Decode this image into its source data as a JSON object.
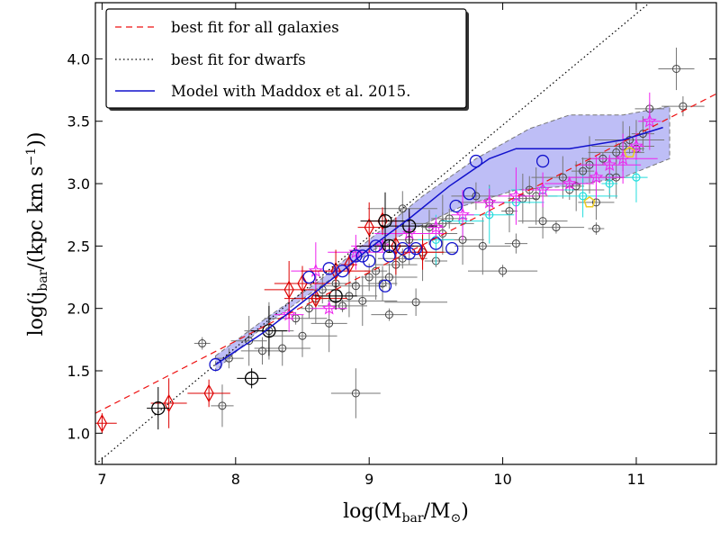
{
  "chart_data": {
    "type": "scatter",
    "xlabel": "log(M",
    "xlabel_sub": "bar",
    "xlabel_mid": "/M",
    "xlabel_sub2": "⊙",
    "xlabel_end": ")",
    "ylabel": "log(j",
    "ylabel_sub": "bar",
    "ylabel_mid": "/(kpc km s",
    "ylabel_sup": "−1",
    "ylabel_end": "))",
    "xlim": [
      6.95,
      11.6
    ],
    "ylim": [
      0.75,
      4.45
    ],
    "xticks": [
      7,
      8,
      9,
      10,
      11
    ],
    "xtick_labels": [
      "7",
      "8",
      "9",
      "10",
      "11"
    ],
    "yticks": [
      1.0,
      1.5,
      2.0,
      2.5,
      3.0,
      3.5,
      4.0
    ],
    "ytick_labels": [
      "1.0",
      "1.5",
      "2.0",
      "2.5",
      "3.0",
      "3.5",
      "4.0"
    ],
    "legend": {
      "location": "upper left",
      "entries": [
        {
          "label": "best fit for all galaxies",
          "style": "dashed",
          "color": "#ee1111"
        },
        {
          "label": "best fit for dwarfs",
          "style": "dotted",
          "color": "#000000"
        },
        {
          "label": "Model with Maddox et al. 2015.",
          "style": "solid",
          "color": "#1111cc"
        }
      ]
    },
    "lines": [
      {
        "name": "best fit for all galaxies",
        "color": "#ee1111",
        "style": "dashed",
        "x": [
          6.95,
          11.6
        ],
        "y": [
          1.16,
          3.72
        ]
      },
      {
        "name": "best fit for dwarfs",
        "color": "#000000",
        "style": "dotted",
        "x": [
          6.95,
          11.1
        ],
        "y": [
          0.75,
          4.45
        ]
      },
      {
        "name": "Model with Maddox et al. 2015.",
        "color": "#1111cc",
        "style": "solid",
        "x": [
          7.85,
          8.2,
          8.5,
          8.8,
          9.0,
          9.3,
          9.6,
          9.9,
          10.1,
          10.5,
          10.9,
          11.2
        ],
        "y": [
          1.55,
          1.8,
          2.05,
          2.3,
          2.48,
          2.72,
          2.98,
          3.2,
          3.28,
          3.28,
          3.35,
          3.45
        ]
      }
    ],
    "band": {
      "color": "#8888ee",
      "upper_x": [
        7.85,
        8.2,
        8.6,
        9.0,
        9.4,
        9.8,
        10.2,
        10.5,
        10.9,
        11.25
      ],
      "upper_y": [
        1.62,
        1.9,
        2.2,
        2.55,
        2.9,
        3.2,
        3.44,
        3.55,
        3.55,
        3.62
      ],
      "lower_x": [
        11.25,
        10.9,
        10.5,
        10.1,
        9.7,
        9.3,
        9.0,
        8.6,
        8.2,
        7.85
      ],
      "lower_y": [
        3.2,
        3.05,
        2.98,
        2.95,
        2.82,
        2.62,
        2.45,
        2.15,
        1.85,
        1.5
      ]
    },
    "grey_points": {
      "x": [
        7.75,
        7.9,
        7.95,
        8.1,
        8.2,
        8.25,
        8.35,
        8.45,
        8.5,
        8.55,
        8.6,
        8.65,
        8.7,
        8.75,
        8.8,
        8.85,
        8.9,
        8.95,
        9.0,
        9.05,
        9.1,
        9.15,
        9.2,
        9.25,
        9.3,
        9.35,
        9.4,
        9.45,
        9.5,
        9.55,
        9.6,
        9.7,
        9.8,
        9.85,
        9.9,
        10.0,
        10.05,
        10.1,
        10.15,
        10.2,
        10.25,
        10.3,
        10.4,
        10.45,
        10.5,
        10.55,
        10.6,
        10.65,
        10.7,
        10.75,
        10.8,
        10.85,
        10.9,
        10.95,
        11.0,
        11.05,
        11.1,
        11.3,
        11.35,
        8.9,
        9.15,
        9.55,
        9.25,
        10.7,
        10.85
      ],
      "y": [
        1.72,
        1.22,
        1.6,
        1.74,
        1.66,
        1.82,
        1.68,
        1.92,
        1.78,
        2.0,
        2.08,
        2.15,
        1.88,
        2.2,
        2.02,
        2.1,
        2.18,
        2.06,
        2.25,
        2.3,
        2.2,
        1.95,
        2.35,
        2.4,
        2.55,
        2.05,
        2.45,
        2.65,
        2.38,
        2.6,
        2.72,
        2.55,
        2.9,
        2.5,
        2.85,
        2.3,
        2.78,
        2.52,
        2.88,
        2.95,
        2.9,
        2.7,
        2.65,
        3.05,
        2.95,
        2.98,
        3.1,
        3.15,
        2.85,
        3.2,
        3.05,
        3.25,
        3.3,
        3.35,
        3.28,
        3.4,
        3.6,
        3.92,
        3.62,
        1.32,
        2.25,
        2.68,
        2.8,
        2.64,
        3.05
      ],
      "color": "#444444"
    },
    "blue_circles": {
      "x": [
        7.85,
        8.55,
        8.7,
        8.8,
        8.95,
        9.05,
        9.15,
        9.25,
        9.35,
        9.5,
        9.65,
        9.75,
        9.8,
        9.0,
        9.12,
        9.3,
        9.62,
        10.3,
        8.9
      ],
      "y": [
        1.55,
        2.25,
        2.32,
        2.3,
        2.42,
        2.5,
        2.42,
        2.48,
        2.48,
        2.52,
        2.82,
        2.92,
        3.18,
        2.38,
        2.18,
        2.44,
        2.48,
        3.18,
        2.42
      ],
      "color": "#1111cc"
    },
    "black_circles": {
      "x": [
        7.42,
        8.12,
        8.25,
        8.75,
        9.12,
        9.3,
        9.15
      ],
      "y": [
        1.2,
        1.44,
        1.82,
        2.1,
        2.7,
        2.66,
        2.5
      ],
      "color": "#000000"
    },
    "red_diamonds": {
      "x": [
        7.0,
        7.5,
        7.8,
        8.4,
        8.5,
        8.6,
        8.75,
        8.85,
        9.0,
        9.1,
        9.2,
        9.4
      ],
      "y": [
        1.08,
        1.24,
        1.32,
        2.15,
        2.2,
        2.08,
        2.3,
        2.35,
        2.65,
        2.7,
        2.5,
        2.45
      ],
      "color": "#dd0000"
    },
    "magenta_stars": {
      "x": [
        8.6,
        8.9,
        9.1,
        9.3,
        9.5,
        9.7,
        9.9,
        10.1,
        10.3,
        10.5,
        10.7,
        10.8,
        10.9,
        11.0,
        11.1,
        8.4,
        8.7
      ],
      "y": [
        2.3,
        2.45,
        2.5,
        2.6,
        2.65,
        2.75,
        2.85,
        2.9,
        2.95,
        3.0,
        3.05,
        3.15,
        3.2,
        3.3,
        3.5,
        1.95,
        2.0
      ],
      "color": "#ee22ee"
    },
    "cyan_crosses": {
      "x": [
        9.5,
        9.7,
        9.9,
        10.1,
        10.3,
        10.6,
        10.8,
        11.0
      ],
      "y": [
        2.55,
        2.7,
        2.75,
        2.85,
        2.95,
        2.9,
        3.0,
        3.05
      ],
      "color": "#22dddd"
    },
    "yellow_pentagons": {
      "x": [
        10.65,
        10.95
      ],
      "y": [
        2.85,
        3.25
      ],
      "color": "#eecc22"
    }
  }
}
